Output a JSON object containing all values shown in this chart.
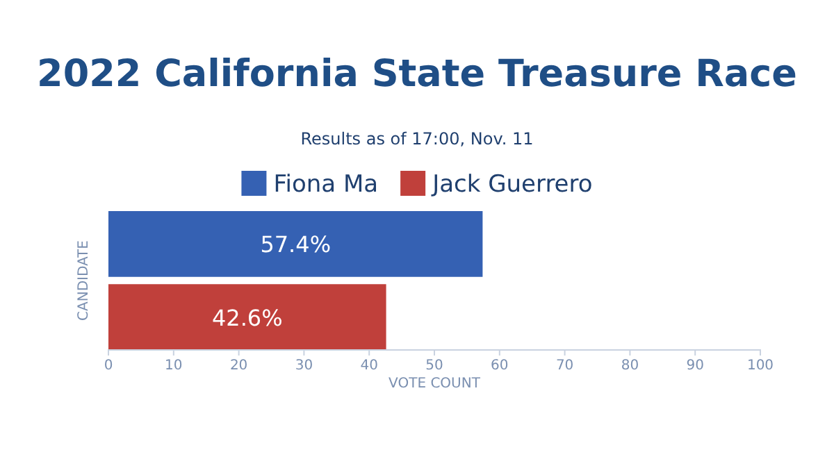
{
  "chart_data": {
    "type": "bar",
    "orientation": "horizontal",
    "title": "2022 California State Treasure Race",
    "subtitle": "Results as of 17:00, Nov. 11",
    "xlabel": "VOTE COUNT",
    "ylabel": "CANDIDATE",
    "categories": [
      null
    ],
    "series": [
      {
        "name": "Fiona Ma",
        "color": "#3561b3",
        "values": [
          57.4
        ],
        "value_labels": [
          "57.4%"
        ]
      },
      {
        "name": "Jack Guerrero",
        "color": "#c0403b",
        "values": [
          42.6
        ],
        "value_labels": [
          "42.6%"
        ]
      }
    ],
    "xlim": [
      0,
      100
    ],
    "xticks": [
      0,
      10,
      20,
      30,
      40,
      50,
      60,
      70,
      80,
      90,
      100
    ],
    "legend": "top",
    "grid": false
  }
}
